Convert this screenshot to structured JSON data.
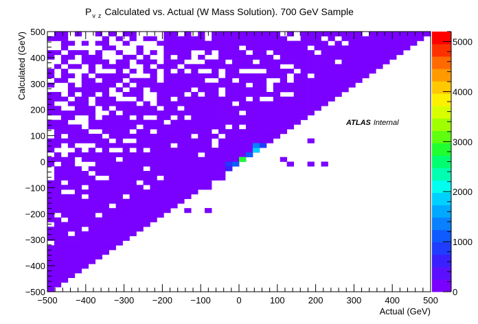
{
  "chart_data": {
    "type": "heatmap",
    "title": "Calculated vs. Actual (W Mass Solution). 700 GeV Sample",
    "title_symbol": "P",
    "title_sub1": "ν",
    "title_sub2": "z",
    "xlabel": "Actual (GeV)",
    "ylabel": "Calculated (GeV)",
    "xlim": [
      -500,
      500
    ],
    "ylim": [
      -500,
      500
    ],
    "bins_x": 56,
    "bins_y": 56,
    "x_ticks": [
      -500,
      -400,
      -300,
      -200,
      -100,
      0,
      100,
      200,
      300,
      400,
      500
    ],
    "y_ticks": [
      -500,
      -400,
      -300,
      -200,
      -100,
      0,
      100,
      200,
      300,
      400,
      500
    ],
    "x_tick_labels": [
      "−500",
      "−400",
      "−300",
      "−200",
      "−100",
      "0",
      "100",
      "200",
      "300",
      "400",
      "500"
    ],
    "y_tick_labels": [
      "−500",
      "−400",
      "−300",
      "−200",
      "−100",
      "0",
      "100",
      "200",
      "300",
      "400",
      "500"
    ],
    "colorbar": {
      "min": 0,
      "max": 5200,
      "tick_values": [
        0,
        1000,
        2000,
        3000,
        4000,
        5000
      ],
      "tick_labels": [
        "0",
        "1000",
        "2000",
        "3000",
        "4000",
        "5000"
      ],
      "colors": [
        "#7a00ff",
        "#5a10ff",
        "#3a20ff",
        "#1f3cff",
        "#0f5bff",
        "#0a80ff",
        "#00a8ff",
        "#00d0ff",
        "#00ffee",
        "#00ffb0",
        "#00ff70",
        "#20ff30",
        "#60ff10",
        "#a0ff00",
        "#d8ff00",
        "#fff000",
        "#ffc800",
        "#ff9a00",
        "#ff6a00",
        "#ff3000",
        "#ff0000"
      ]
    },
    "peak_cells": [
      {
        "x": -10,
        "y": -5,
        "value": 1000
      },
      {
        "x": 0,
        "y": 5,
        "value": 1300
      },
      {
        "x": 10,
        "y": 15,
        "value": 2800
      },
      {
        "x": 20,
        "y": 25,
        "value": 1400
      },
      {
        "x": 30,
        "y": 35,
        "value": 1200
      },
      {
        "x": 40,
        "y": 45,
        "value": 1800
      },
      {
        "x": 50,
        "y": 55,
        "value": 1300
      },
      {
        "x": 60,
        "y": 65,
        "value": 900
      },
      {
        "x": -20,
        "y": -15,
        "value": 800
      },
      {
        "x": -30,
        "y": -25,
        "value": 700
      }
    ],
    "isolated_cells": [
      {
        "x": -78,
        "y": -185
      },
      {
        "x": -75,
        "y": -185
      },
      {
        "x": -80,
        "y": -90
      },
      {
        "x": -60,
        "y": -65
      },
      {
        "x": -50,
        "y": -65
      },
      {
        "x": 130,
        "y": -5
      },
      {
        "x": 140,
        "y": -5
      },
      {
        "x": 120,
        "y": 15
      },
      {
        "x": 220,
        "y": -5
      },
      {
        "x": 190,
        "y": -10
      },
      {
        "x": -140,
        "y": -185
      },
      {
        "x": 180,
        "y": 80
      }
    ],
    "annotation_bold": "ATLAS",
    "annotation_text": "Internal"
  }
}
